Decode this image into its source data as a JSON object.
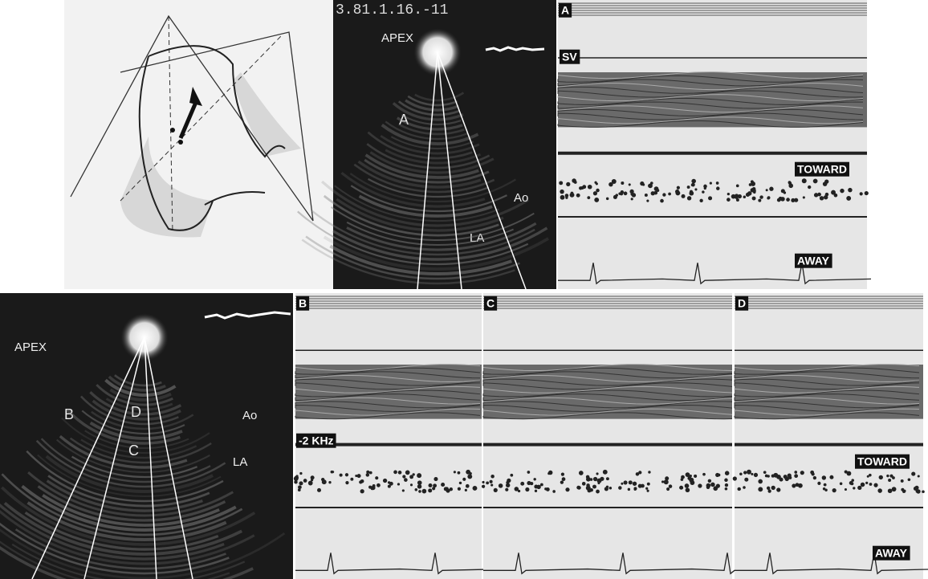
{
  "top_echo": {
    "header": "3.81.1.16.-11",
    "apex": "APEX",
    "arrow_label": "A",
    "ao": "Ao",
    "la": "LA"
  },
  "panel_a": {
    "label": "A",
    "sample_volume": "SV",
    "toward": "TOWARD",
    "away": "AWAY"
  },
  "bottom_echo": {
    "apex": "APEX",
    "beam_labels": [
      "B",
      "D",
      "C"
    ],
    "ao": "Ao",
    "la": "LA"
  },
  "panels": [
    {
      "label": "B",
      "scale": "-2 KHz"
    },
    {
      "label": "C"
    },
    {
      "label": "D",
      "toward": "TOWARD",
      "away": "AWAY"
    }
  ]
}
